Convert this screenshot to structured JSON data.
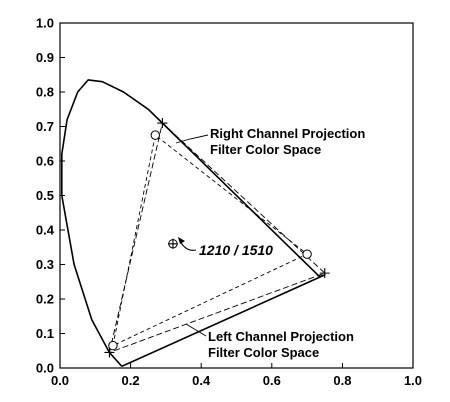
{
  "chart_data": {
    "type": "line",
    "title": "",
    "xlabel": "",
    "ylabel": "",
    "xlim": [
      0.0,
      1.0
    ],
    "ylim": [
      0.0,
      1.0
    ],
    "x_ticks": [
      "0.0",
      "0.2",
      "0.4",
      "0.6",
      "0.8",
      "1.0"
    ],
    "y_ticks": [
      "0.0",
      "0.1",
      "0.2",
      "0.3",
      "0.4",
      "0.5",
      "0.6",
      "0.7",
      "0.8",
      "0.9",
      "1.0"
    ],
    "grid": false,
    "series": [
      {
        "style": "solid-outline",
        "x": [
          0.175,
          0.14,
          0.09,
          0.04,
          0.005,
          0.005,
          0.02,
          0.05,
          0.08,
          0.12,
          0.18,
          0.25,
          0.3,
          0.38,
          0.48,
          0.58,
          0.68,
          0.735,
          0.75,
          0.175
        ],
        "y": [
          0.005,
          0.045,
          0.14,
          0.3,
          0.5,
          0.62,
          0.72,
          0.8,
          0.835,
          0.83,
          0.8,
          0.75,
          0.7,
          0.62,
          0.52,
          0.42,
          0.32,
          0.265,
          0.27,
          0.005
        ]
      },
      {
        "style": "dashed",
        "x": [
          0.14,
          0.29,
          0.75,
          0.14
        ],
        "y": [
          0.045,
          0.71,
          0.275,
          0.045
        ]
      },
      {
        "style": "dashed",
        "x": [
          0.15,
          0.27,
          0.7,
          0.15
        ],
        "y": [
          0.065,
          0.675,
          0.33,
          0.065
        ]
      }
    ],
    "markers": {
      "plus": [
        {
          "x": 0.14,
          "y": 0.045
        },
        {
          "x": 0.29,
          "y": 0.71
        },
        {
          "x": 0.75,
          "y": 0.275
        },
        {
          "x": 0.32,
          "y": 0.36
        }
      ],
      "circle": [
        {
          "x": 0.15,
          "y": 0.065
        },
        {
          "x": 0.27,
          "y": 0.675
        },
        {
          "x": 0.7,
          "y": 0.33
        },
        {
          "x": 0.32,
          "y": 0.36
        }
      ]
    },
    "annotations": {
      "right_channel": [
        "Right Channel Projection",
        "Filter Color Space"
      ],
      "left_channel": [
        "Left Channel Projection",
        "Filter Color Space"
      ],
      "white_point": "1210 / 1510"
    }
  }
}
